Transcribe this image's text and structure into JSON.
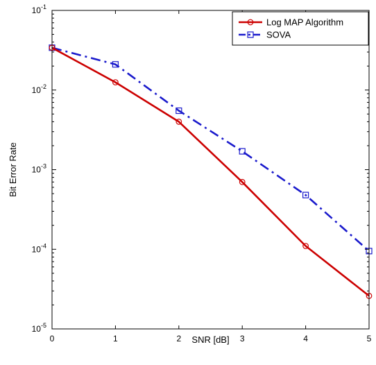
{
  "chart_data": {
    "type": "line",
    "xlabel": "SNR [dB]",
    "ylabel": "Bit Error Rate",
    "x": [
      0,
      1,
      2,
      3,
      4,
      5
    ],
    "xlim": [
      0,
      5
    ],
    "ylim": [
      1e-05,
      0.1
    ],
    "yscale": "log",
    "x_tick_labels": [
      "0",
      "1",
      "2",
      "3",
      "4",
      "5"
    ],
    "y_tick_labels": [
      {
        "base": "10",
        "exp": "-1"
      },
      {
        "base": "10",
        "exp": "-2"
      },
      {
        "base": "10",
        "exp": "-3"
      },
      {
        "base": "10",
        "exp": "-4"
      },
      {
        "base": "10",
        "exp": "-5"
      }
    ],
    "grid": false,
    "legend_position": "top-right",
    "series": [
      {
        "name": "Log MAP Algorithm",
        "color": "#cc0000",
        "line_style": "solid",
        "marker": "circle",
        "values": [
          0.034,
          0.0125,
          0.004,
          0.0007,
          0.00011,
          2.6e-05
        ]
      },
      {
        "name": "SOVA",
        "color": "#1a1acc",
        "line_style": "dash-dot",
        "marker": "square",
        "values": [
          0.034,
          0.021,
          0.0055,
          0.0017,
          0.00048,
          9.5e-05
        ]
      }
    ]
  }
}
